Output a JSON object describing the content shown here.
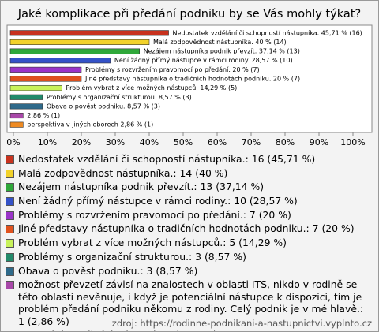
{
  "chart_data": {
    "type": "bar",
    "orientation": "horizontal",
    "title": "Jaké komplikace při předání podniku by se Vás mohly týkat?",
    "categories": [
      "Nedostatek vzdělání či schopností nástupníka.: 16 (45,71 %)",
      "Malá zodpovědnost nástupníka.: 14 (40 %)",
      "Nezájem nástupníka podnik převzít.: 13 (37,14 %)",
      "Není žádný přímý nástupce v rámci rodiny.: 10 (28,57 %)",
      "Problémy s rozvržením pravomocí po předání.: 7 (20 %)",
      "Jiné představy nástupníka o tradičních hodnotách podniku.: 7 (20 %)",
      "Problém vybrat z více možných nástupců.: 5 (14,29 %)",
      "Problémy s organizační strukturou.: 3 (8,57 %)",
      "Obava o pověst podniku.: 3 (8,57 %)",
      "možnost převzetí závisí na znalostech v oblasti ITS, nikdo v rodině se této oblasti nevěnuje, i když je potenciální nástupce k dispozici, tím je problém předání podniku někomu z rodiny. Celý podnik je v mé hlavě.: 1 (2,86 %)",
      "perspektiva v jiných oborech: 1 (2,86 %)"
    ],
    "values": [
      45.71,
      40,
      37.14,
      28.57,
      20,
      20,
      14.29,
      8.57,
      8.57,
      2.86,
      2.86
    ],
    "value_labels": [
      "Nedostatek vzdělání či schopností nástupníka. 45,71 % (16)",
      "Malá zodpovědnost nástupníka. 40 % (14)",
      "Nezájem nástupníka podnik převzít. 37,14 % (13)",
      "Není žádný přímý nástupce v rámci rodiny. 28,57 % (10)",
      "Problémy s rozvržením pravomocí po předání. 20 % (7)",
      "Jiné představy nástupníka o tradičních hodnotách podniku. 20 % (7)",
      "Problém vybrat z více možných nástupců. 14,29 % (5)",
      "Problémy s organizační strukturou. 8,57 % (3)",
      "Obava o pověst podniku. 8,57 % (3)",
      "2,86 % (1)",
      "perspektiva v jiných oborech 2,86 % (1)"
    ],
    "colors": [
      "#c8321e",
      "#f2d22a",
      "#2fa83a",
      "#3452c8",
      "#9a34c8",
      "#e0521e",
      "#c8f25a",
      "#228a6a",
      "#2f6a8a",
      "#a848a8",
      "#ee8a22"
    ],
    "xlim": [
      0,
      100
    ],
    "xticks": [
      {
        "value": 0,
        "label": "0%"
      },
      {
        "value": 10,
        "label": "10%"
      },
      {
        "value": 20,
        "label": "20%"
      },
      {
        "value": 30,
        "label": "30%"
      },
      {
        "value": 40,
        "label": "40%"
      },
      {
        "value": 50,
        "label": "50%"
      },
      {
        "value": 60,
        "label": "60%"
      },
      {
        "value": 70,
        "label": "70%"
      },
      {
        "value": 80,
        "label": "80%"
      },
      {
        "value": 90,
        "label": "90%"
      },
      {
        "value": 100,
        "label": "100%"
      }
    ],
    "source": "zdroj: https://rodinne-podnikani-a-nastupnictvi.vyplnto.cz"
  }
}
